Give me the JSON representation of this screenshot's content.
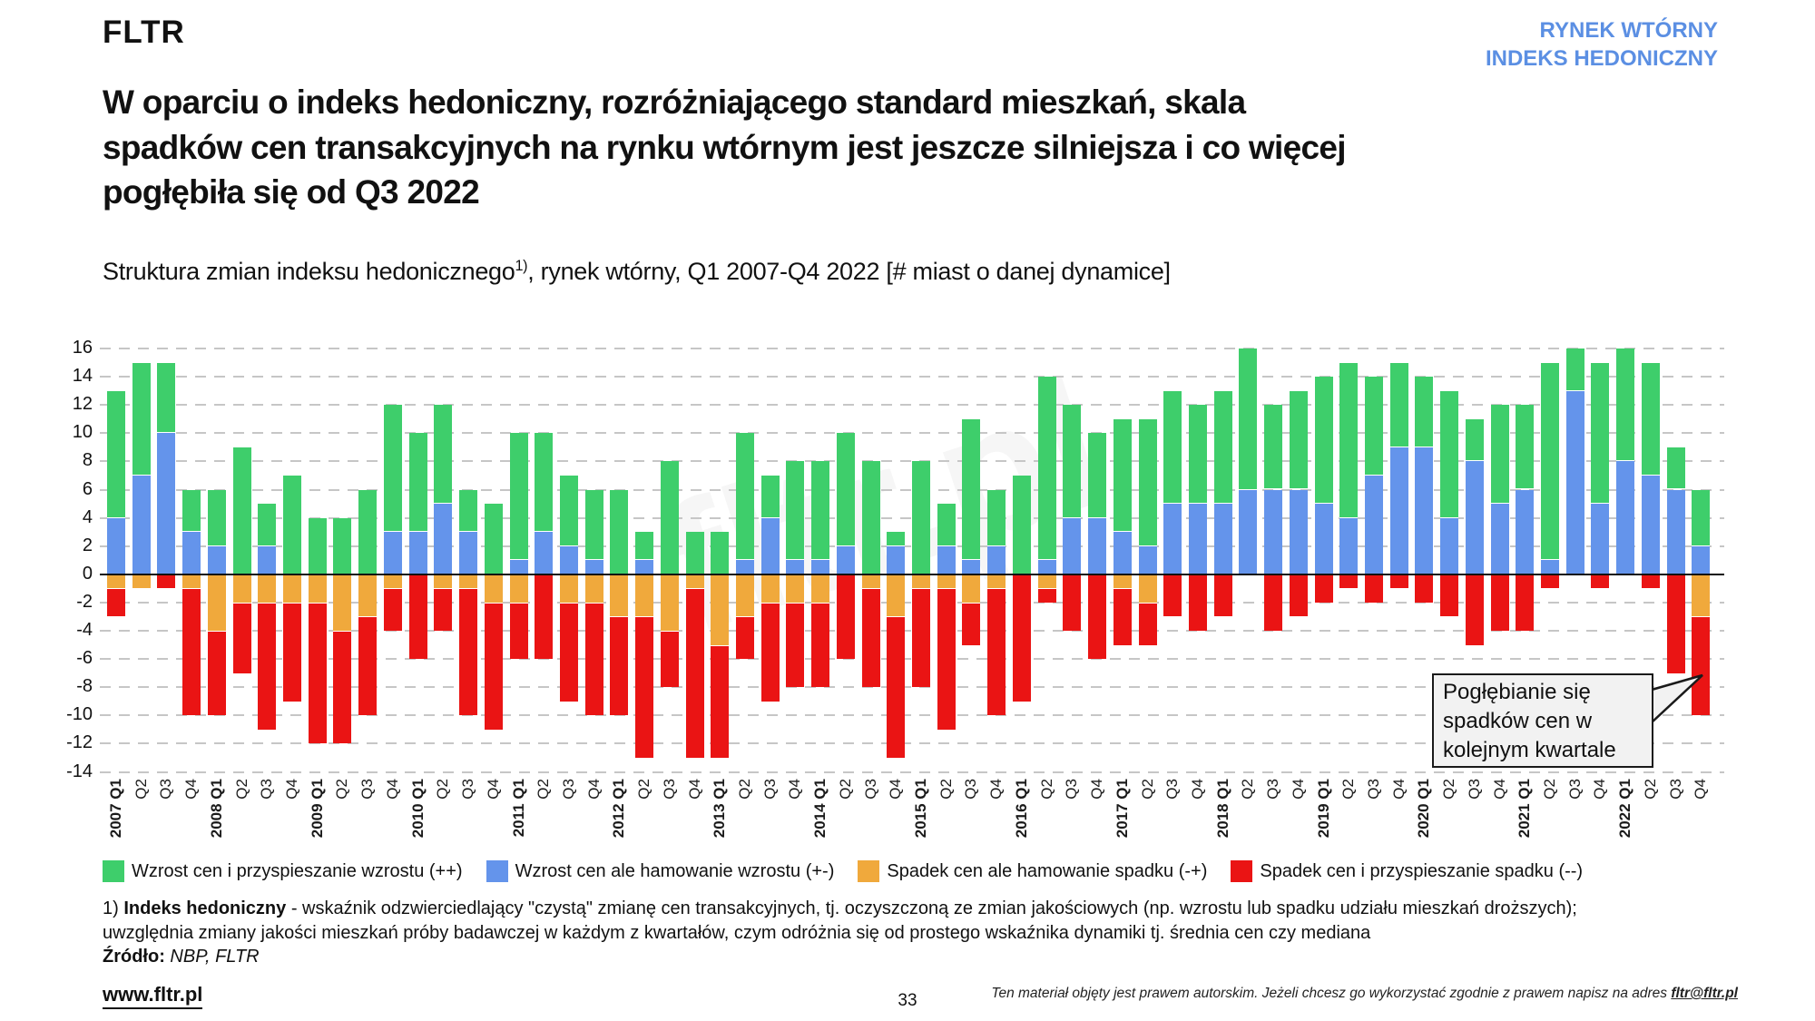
{
  "header": {
    "logo": "FLTR",
    "corner_line1": "RYNEK WTÓRNY",
    "corner_line2": "INDEKS HEDONICZNY",
    "corner_color": "#5B8FE3"
  },
  "title": "W oparciu o indeks hedoniczny, rozróżniającego standard mieszkań, skala\nspadków cen transakcyjnych na rynku wtórnym jest jeszcze silniejsza i co więcej\npogłębiła się od Q3 2022",
  "subtitle": {
    "pre": "Struktura zmian indeksu hedonicznego",
    "sup": "1)",
    "post": ", rynek wtórny, Q1 2007-Q4 2022 [# miast o danej dynamice]"
  },
  "chart_data": {
    "type": "bar",
    "stacked": true,
    "title": "Struktura zmian indeksu hedonicznego, rynek wtórny, Q1 2007-Q4 2022 [# miast o danej dynamice]",
    "xlabel": "",
    "ylabel": "",
    "ymin": -14,
    "ymax": 16,
    "ytick_step": 2,
    "grid": "dashed-horizontal",
    "legend_position": "bottom",
    "categories": [
      "2007 Q1",
      "Q2",
      "Q3",
      "Q4",
      "2008 Q1",
      "Q2",
      "Q3",
      "Q4",
      "2009 Q1",
      "Q2",
      "Q3",
      "Q4",
      "2010 Q1",
      "Q2",
      "Q3",
      "Q4",
      "2011 Q1",
      "Q2",
      "Q3",
      "Q4",
      "2012 Q1",
      "Q2",
      "Q3",
      "Q4",
      "2013 Q1",
      "Q2",
      "Q3",
      "Q4",
      "2014 Q1",
      "Q2",
      "Q3",
      "Q4",
      "2015 Q1",
      "Q2",
      "Q3",
      "Q4",
      "2016 Q1",
      "Q2",
      "Q3",
      "Q4",
      "2017 Q1",
      "Q2",
      "Q3",
      "Q4",
      "2018 Q1",
      "Q2",
      "Q3",
      "Q4",
      "2019 Q1",
      "Q2",
      "Q3",
      "Q4",
      "2020 Q1",
      "Q2",
      "Q3",
      "Q4",
      "2021 Q1",
      "Q2",
      "Q3",
      "Q4",
      "2022 Q1",
      "Q2",
      "Q3",
      "Q4"
    ],
    "series": [
      {
        "name": "Wzrost cen i przyspieszanie wzrostu (++)",
        "color": "#3ECE6B",
        "values": [
          9,
          8,
          5,
          3,
          4,
          9,
          3,
          7,
          4,
          4,
          6,
          9,
          7,
          7,
          3,
          5,
          9,
          7,
          5,
          5,
          6,
          2,
          8,
          3,
          3,
          9,
          3,
          7,
          7,
          8,
          8,
          1,
          8,
          3,
          10,
          4,
          7,
          13,
          8,
          6,
          8,
          9,
          8,
          7,
          8,
          10,
          6,
          7,
          9,
          11,
          7,
          6,
          5,
          9,
          3,
          7,
          6,
          14,
          3,
          10,
          8,
          8,
          3,
          4
        ]
      },
      {
        "name": "Wzrost cen ale hamowanie wzrostu (+-)",
        "color": "#6494EB",
        "values": [
          4,
          7,
          10,
          3,
          2,
          0,
          2,
          0,
          0,
          0,
          0,
          3,
          3,
          5,
          3,
          0,
          1,
          3,
          2,
          1,
          0,
          1,
          0,
          0,
          0,
          1,
          4,
          1,
          1,
          2,
          0,
          2,
          0,
          2,
          1,
          2,
          0,
          1,
          4,
          4,
          3,
          2,
          5,
          5,
          5,
          6,
          6,
          6,
          5,
          4,
          7,
          9,
          9,
          4,
          8,
          5,
          6,
          1,
          13,
          5,
          8,
          7,
          6,
          2
        ]
      },
      {
        "name": "Spadek cen ale hamowanie spadku (-+)",
        "color": "#F0A93C",
        "values": [
          -1,
          -1,
          0,
          -1,
          -4,
          -2,
          -2,
          -2,
          -2,
          -4,
          -3,
          -1,
          0,
          -1,
          -1,
          -2,
          -2,
          0,
          -2,
          -2,
          -3,
          -3,
          -4,
          -1,
          -5,
          -3,
          -2,
          -2,
          -2,
          0,
          -1,
          -3,
          -1,
          -1,
          -2,
          -1,
          0,
          -1,
          0,
          0,
          -1,
          -2,
          0,
          0,
          0,
          0,
          0,
          0,
          0,
          0,
          0,
          0,
          0,
          0,
          0,
          0,
          0,
          0,
          0,
          0,
          0,
          0,
          0,
          -3
        ]
      },
      {
        "name": "Spadek cen i przyspieszanie spadku (--)",
        "color": "#EA1414",
        "values": [
          -2,
          0,
          -1,
          -9,
          -6,
          -5,
          -9,
          -7,
          -10,
          -8,
          -7,
          -3,
          -6,
          -3,
          -9,
          -9,
          -4,
          -6,
          -7,
          -8,
          -7,
          -10,
          -4,
          -12,
          -8,
          -3,
          -7,
          -6,
          -6,
          -6,
          -7,
          -10,
          -7,
          -10,
          -3,
          -9,
          -9,
          -1,
          -4,
          -6,
          -4,
          -3,
          -3,
          -4,
          -3,
          0,
          -4,
          -3,
          -2,
          -1,
          -2,
          -1,
          -2,
          -3,
          -5,
          -4,
          -4,
          -1,
          0,
          -1,
          0,
          -1,
          -7,
          -7
        ]
      }
    ]
  },
  "annotation": {
    "text": "Pogłębianie się\nspadków cen w\nkolejnym kwartale"
  },
  "watermark": "fltr.pl",
  "footnote": {
    "marker": "1) ",
    "term": "Indeks hedoniczny",
    "line1_rest": " - wskaźnik odzwierciedlający  \"czystą\" zmianę cen transakcyjnych, tj.  oczyszczoną ze zmian jakościowych (np. wzrostu lub spadku udziału mieszkań droższych);",
    "line2": "uwzględnia zmiany jakości mieszkań próby badawczej w każdym z kwartałów, czym odróżnia się od prostego wskaźnika dynamiki tj. średnia cen czy mediana",
    "source_label": "Źródło:",
    "source_value": " NBP, FLTR"
  },
  "footer": {
    "site": "www.fltr.pl",
    "page_number": "33",
    "copyright": "Ten materiał objęty jest prawem autorskim. Jeżeli chcesz go wykorzystać zgodnie z prawem napisz na adres ",
    "copyright_email": "fltr@fltr.pl"
  }
}
